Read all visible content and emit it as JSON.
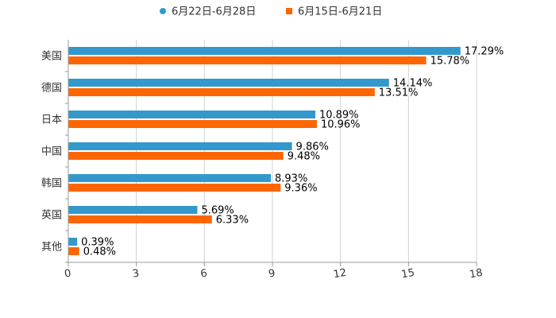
{
  "chart_data": {
    "type": "bar",
    "orientation": "horizontal",
    "categories": [
      "美国",
      "德国",
      "日本",
      "中国",
      "韩国",
      "英国",
      "其他"
    ],
    "series": [
      {
        "name": "6月22日-6月28日",
        "color": "#3399cc",
        "values": [
          17.29,
          14.14,
          10.89,
          9.86,
          8.93,
          5.69,
          0.39
        ],
        "labels": [
          "17.29%",
          "14.14%",
          "10.89%",
          "9.86%",
          "8.93%",
          "5.69%",
          "0.39%"
        ]
      },
      {
        "name": "6月15日-6月21日",
        "color": "#ff6600",
        "values": [
          15.78,
          13.51,
          10.96,
          9.48,
          9.36,
          6.33,
          0.48
        ],
        "labels": [
          "15.78%",
          "13.51%",
          "10.96%",
          "9.48%",
          "9.36%",
          "6.33%",
          "0.48%"
        ]
      }
    ],
    "xlim": [
      0,
      18
    ],
    "xticks": [
      "0",
      "3",
      "6",
      "9",
      "12",
      "15",
      "18"
    ],
    "grid": true,
    "legend": "top-center"
  }
}
